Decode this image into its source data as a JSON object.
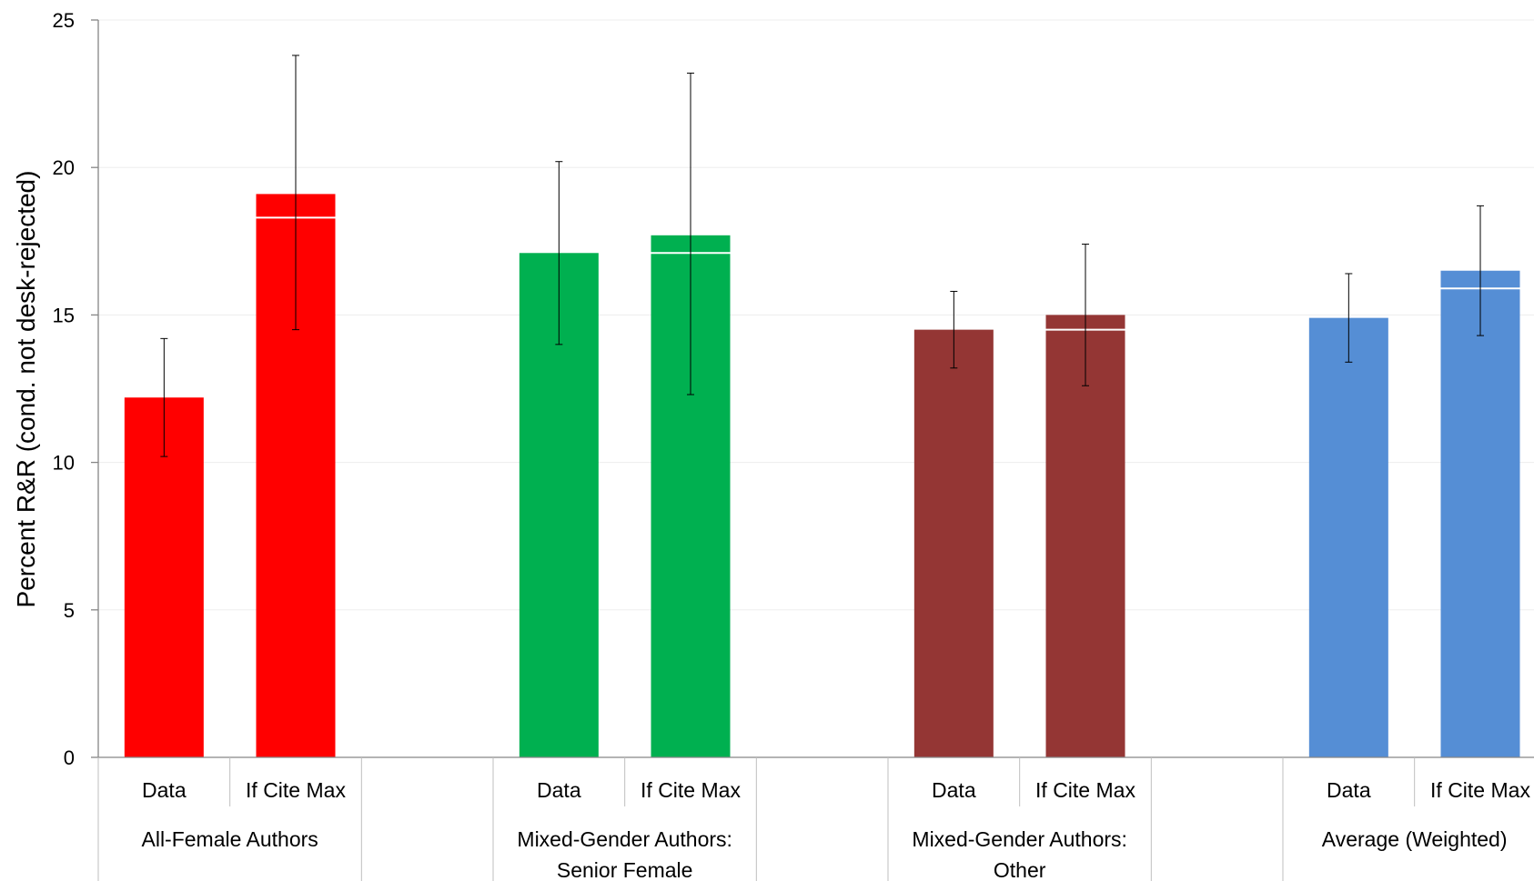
{
  "chart_data": {
    "type": "bar",
    "title": "",
    "ylabel": "Percent R&R (cond. not desk-rejected)",
    "ylim": [
      0,
      25
    ],
    "yticks": [
      0,
      5,
      10,
      15,
      20,
      25
    ],
    "grid": true,
    "sub_categories": [
      "Data",
      "If Cite Max"
    ],
    "groups": [
      {
        "label_lines": [
          "All-Female Authors"
        ],
        "color": "#FF0000",
        "bars": [
          {
            "label": "Data",
            "value": 12.2,
            "err_low": 10.2,
            "err_high": 14.2,
            "marker": null
          },
          {
            "label": "If Cite Max",
            "value": 19.1,
            "err_low": 14.5,
            "err_high": 23.8,
            "marker": 18.3
          }
        ]
      },
      {
        "label_lines": [
          "Mixed-Gender Authors:",
          "Senior Female"
        ],
        "color": "#00B050",
        "bars": [
          {
            "label": "Data",
            "value": 17.1,
            "err_low": 14.0,
            "err_high": 20.2,
            "marker": null
          },
          {
            "label": "If Cite Max",
            "value": 17.7,
            "err_low": 12.3,
            "err_high": 23.2,
            "marker": 17.1
          }
        ]
      },
      {
        "label_lines": [
          "Mixed-Gender Authors:",
          "Other"
        ],
        "color": "#943634",
        "bars": [
          {
            "label": "Data",
            "value": 14.5,
            "err_low": 13.2,
            "err_high": 15.8,
            "marker": null
          },
          {
            "label": "If Cite Max",
            "value": 15.0,
            "err_low": 12.6,
            "err_high": 17.4,
            "marker": 14.5
          }
        ]
      },
      {
        "label_lines": [
          "Average (Weighted)"
        ],
        "color": "#558ED5",
        "bars": [
          {
            "label": "Data",
            "value": 14.9,
            "err_low": 13.4,
            "err_high": 16.4,
            "marker": null
          },
          {
            "label": "If Cite Max",
            "value": 16.5,
            "err_low": 14.3,
            "err_high": 18.7,
            "marker": 15.9
          }
        ]
      }
    ]
  }
}
